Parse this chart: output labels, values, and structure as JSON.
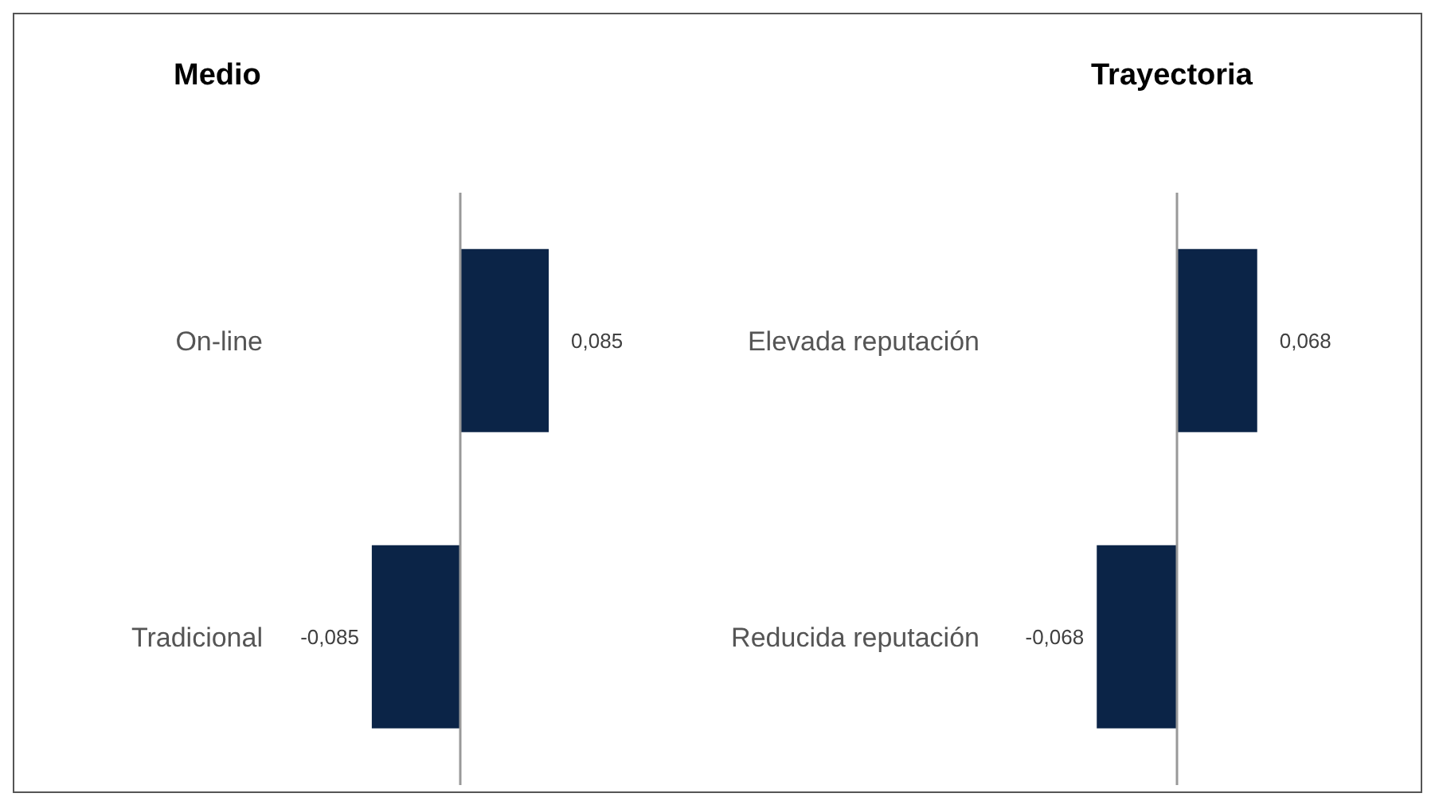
{
  "chart_data": [
    {
      "type": "bar",
      "orientation": "horizontal",
      "title": "Medio",
      "categories": [
        "On-line",
        "Tradicional"
      ],
      "values": [
        0.085,
        -0.085
      ],
      "value_labels": [
        "0,085",
        "-0,085"
      ],
      "color": "#0b2447",
      "tick_labels": "y"
    },
    {
      "type": "bar",
      "orientation": "horizontal",
      "title": "Trayectoria",
      "categories": [
        "Elevada reputación",
        "Reducida reputación"
      ],
      "values": [
        0.068,
        -0.068
      ],
      "value_labels": [
        "0,068",
        "-0,068"
      ],
      "color": "#0b2447",
      "tick_labels": "y"
    }
  ]
}
